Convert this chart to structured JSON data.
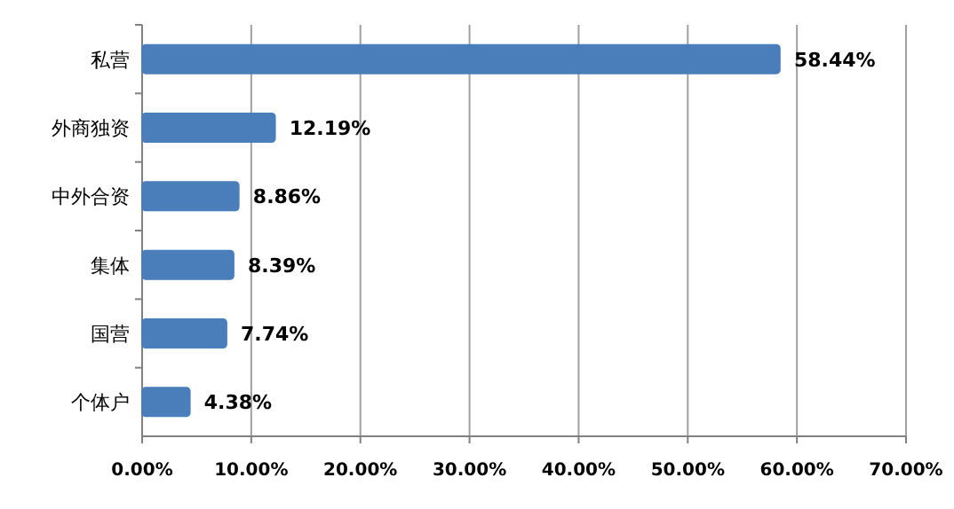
{
  "chart_data": {
    "type": "bar",
    "orientation": "horizontal",
    "categories": [
      "私营",
      "外商独资",
      "中外合资",
      "集体",
      "国营",
      "个体户"
    ],
    "values": [
      58.44,
      12.19,
      8.86,
      8.39,
      7.74,
      4.38
    ],
    "value_labels": [
      "58.44%",
      "12.19%",
      "8.86%",
      "8.39%",
      "7.74%",
      "4.38%"
    ],
    "color": "#4a7ebb",
    "xlim": [
      0,
      70
    ],
    "xticks": [
      {
        "value": 0,
        "label": "0.00%"
      },
      {
        "value": 10,
        "label": "10.00%"
      },
      {
        "value": 20,
        "label": "20.00%"
      },
      {
        "value": 30,
        "label": "30.00%"
      },
      {
        "value": 40,
        "label": "40.00%"
      },
      {
        "value": 50,
        "label": "50.00%"
      },
      {
        "value": 60,
        "label": "60.00%"
      },
      {
        "value": 70,
        "label": "70.00%"
      }
    ],
    "grid": "x"
  }
}
